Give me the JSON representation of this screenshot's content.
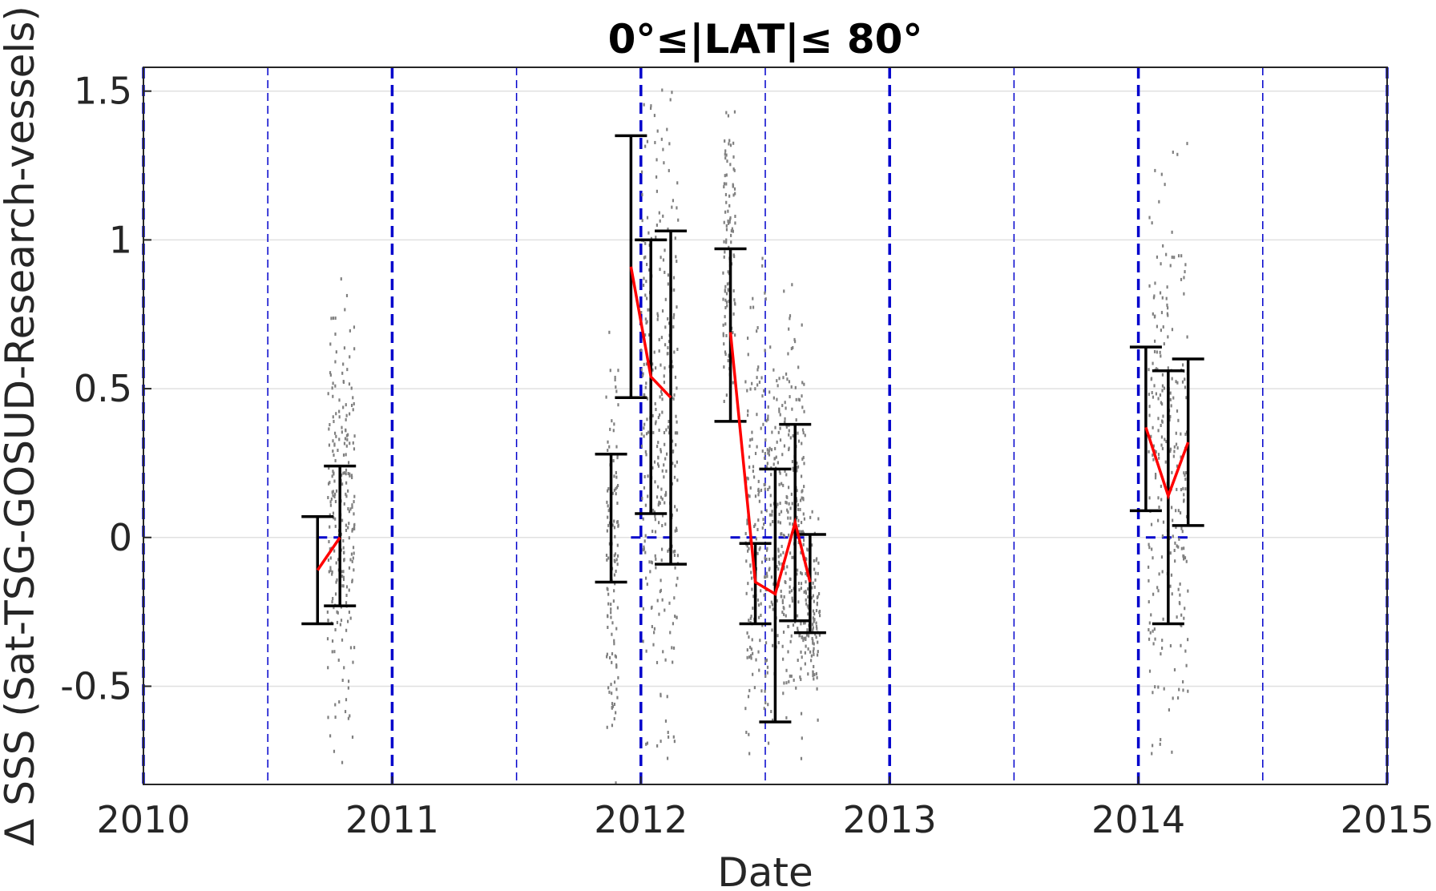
{
  "chart_data": {
    "type": "scatter",
    "title": "0°≤|LAT|≤ 80°",
    "xlabel": "Date",
    "ylabel": "Δ SSS (Sat-TSG-GOSUD-Research-vessels)",
    "xlim": [
      2010,
      2015
    ],
    "ylim": [
      -0.83,
      1.58
    ],
    "xticks": [
      "2010",
      "2011",
      "2012",
      "2013",
      "2014",
      "2015"
    ],
    "yticks": [
      "-0.5",
      "0",
      "0.5",
      "1",
      "1.5"
    ],
    "ytick_values": [
      -0.5,
      0,
      0.5,
      1,
      1.5
    ],
    "grid": "horizontal",
    "year_lines": [
      2010,
      2011,
      2012,
      2013,
      2014,
      2015
    ],
    "half_year_lines": [
      2010.5,
      2011.5,
      2012.5,
      2013.5,
      2014.5
    ],
    "zero_segments": [
      {
        "x": [
          2010.7,
          2010.79
        ]
      },
      {
        "x": [
          2011.96,
          2012.12
        ]
      },
      {
        "x": [
          2012.36,
          2012.68
        ]
      },
      {
        "x": [
          2014.03,
          2014.2
        ]
      }
    ],
    "scatter_clusters": [
      {
        "x": [
          2010.74,
          2010.85
        ],
        "y": [
          -0.75,
          0.9
        ],
        "count": 240
      },
      {
        "x": [
          2011.86,
          2011.91
        ],
        "y": [
          -0.85,
          0.75
        ],
        "count": 120
      },
      {
        "x": [
          2012.0,
          2012.15
        ],
        "y": [
          -0.85,
          1.58
        ],
        "count": 320
      },
      {
        "x": [
          2012.33,
          2012.38
        ],
        "y": [
          0.3,
          1.55
        ],
        "count": 110
      },
      {
        "x": [
          2012.42,
          2012.55
        ],
        "y": [
          -0.85,
          0.9
        ],
        "count": 240
      },
      {
        "x": [
          2012.55,
          2012.66
        ],
        "y": [
          -0.8,
          0.95
        ],
        "count": 240
      },
      {
        "x": [
          2012.66,
          2012.72
        ],
        "y": [
          -0.6,
          0.1
        ],
        "count": 110
      },
      {
        "x": [
          2014.04,
          2014.2
        ],
        "y": [
          -0.85,
          1.35
        ],
        "count": 260
      }
    ],
    "error_bars": [
      {
        "x": 2010.7,
        "low": -0.29,
        "high": 0.07
      },
      {
        "x": 2010.79,
        "low": -0.23,
        "high": 0.24
      },
      {
        "x": 2011.88,
        "low": -0.15,
        "high": 0.28
      },
      {
        "x": 2011.96,
        "low": 0.47,
        "high": 1.35
      },
      {
        "x": 2012.04,
        "low": 0.08,
        "high": 1.0
      },
      {
        "x": 2012.12,
        "low": -0.09,
        "high": 1.03
      },
      {
        "x": 2012.36,
        "low": 0.39,
        "high": 0.97
      },
      {
        "x": 2012.46,
        "low": -0.29,
        "high": -0.02
      },
      {
        "x": 2012.54,
        "low": -0.62,
        "high": 0.23
      },
      {
        "x": 2012.62,
        "low": -0.28,
        "high": 0.38
      },
      {
        "x": 2012.68,
        "low": -0.32,
        "high": 0.01
      },
      {
        "x": 2014.03,
        "low": 0.09,
        "high": 0.64
      },
      {
        "x": 2014.12,
        "low": -0.29,
        "high": 0.56
      },
      {
        "x": 2014.2,
        "low": 0.04,
        "high": 0.6
      }
    ],
    "series": [
      {
        "x": [
          2010.7,
          2010.79
        ],
        "y": [
          -0.11,
          0.0
        ]
      },
      {
        "x": [
          2011.96,
          2012.04,
          2012.12
        ],
        "y": [
          0.91,
          0.54,
          0.47
        ]
      },
      {
        "x": [
          2012.36,
          2012.46,
          2012.54,
          2012.62,
          2012.68
        ],
        "y": [
          0.69,
          -0.15,
          -0.19,
          0.05,
          -0.15
        ]
      },
      {
        "x": [
          2014.03,
          2014.12,
          2014.2
        ],
        "y": [
          0.37,
          0.14,
          0.32
        ]
      }
    ],
    "colors": {
      "scatter": "#808080",
      "mean_line": "#ff0000",
      "error_bar": "#000000",
      "year_line": "#0000cc",
      "grid": "#e0e0e0",
      "axis": "#262626"
    }
  }
}
